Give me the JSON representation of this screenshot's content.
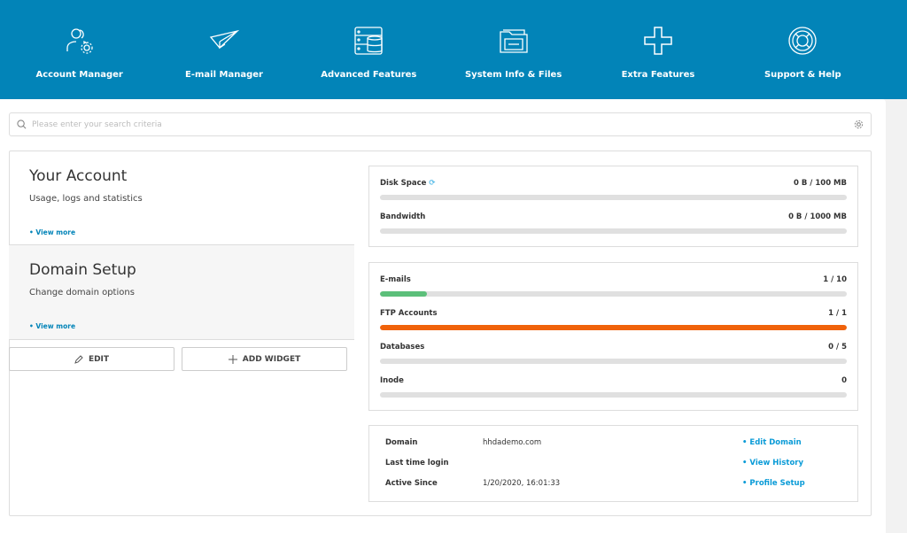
{
  "nav": [
    {
      "label": "Account Manager",
      "icon": "users-gear-icon"
    },
    {
      "label": "E-mail Manager",
      "icon": "paper-plane-icon"
    },
    {
      "label": "Advanced Features",
      "icon": "server-database-icon"
    },
    {
      "label": "System Info & Files",
      "icon": "folder-icon"
    },
    {
      "label": "Extra Features",
      "icon": "plus-icon"
    },
    {
      "label": "Support & Help",
      "icon": "lifebuoy-icon"
    }
  ],
  "search": {
    "placeholder": "Please enter your search criteria"
  },
  "widgets": [
    {
      "title": "Your Account",
      "subtitle": "Usage, logs and statistics",
      "link": "• View more"
    },
    {
      "title": "Domain Setup",
      "subtitle": "Change domain options",
      "link": "• View more"
    }
  ],
  "buttons": {
    "edit": "EDIT",
    "add_widget": "ADD WIDGET"
  },
  "usage": [
    {
      "label": "Disk Space",
      "value": "0 B / 100 MB",
      "percent": 0
    },
    {
      "label": "Bandwidth",
      "value": "0 B / 1000 MB",
      "percent": 0
    }
  ],
  "resources": [
    {
      "label": "E-mails",
      "value": "1 / 10",
      "percent": 10,
      "color": "#5cbf7a"
    },
    {
      "label": "FTP Accounts",
      "value": "1 / 1",
      "percent": 100,
      "color": "#f0620a"
    },
    {
      "label": "Databases",
      "value": "0 / 5",
      "percent": 0,
      "color": "#ccc"
    },
    {
      "label": "Inode",
      "value": "0",
      "percent": 0,
      "color": "#ccc"
    }
  ],
  "info": [
    {
      "key": "Domain",
      "value": "hhdademo.com",
      "link": "• Edit Domain"
    },
    {
      "key": "Last time login",
      "value": "",
      "link": "• View History"
    },
    {
      "key": "Active Since",
      "value": "1/20/2020, 16:01:33",
      "link": "• Profile Setup"
    }
  ],
  "colors": {
    "header": "#0284b8",
    "link": "#0a9bd7"
  }
}
